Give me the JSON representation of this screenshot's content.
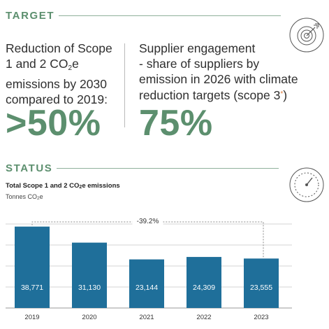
{
  "target": {
    "heading": "TARGET",
    "left_lines": [
      "Reduction of Scope",
      "1 and 2 CO",
      "emissions by 2030",
      "compared to 2019:"
    ],
    "left_sub": "2",
    "left_suffix": "e",
    "left_value": ">50%",
    "right_lines": [
      "Supplier engagement",
      "- share of suppliers by",
      "emission in 2026 with climate",
      "reduction targets (scope 3"
    ],
    "right_star": "*",
    "right_close": ")",
    "right_value": "75%",
    "icon": "target-icon"
  },
  "status": {
    "heading": "STATUS",
    "icon": "speedometer-icon"
  },
  "chart_data": {
    "type": "bar",
    "title": "Total Scope 1 and 2 CO2e emissions",
    "title_parts": [
      "Total Scope 1 and 2 CO",
      "2",
      "e emissions"
    ],
    "ylabel": "Tonnes CO2e",
    "ylabel_parts": [
      "Tonnes CO",
      "2",
      "e"
    ],
    "categories": [
      "2019",
      "2020",
      "2021",
      "2022",
      "2023"
    ],
    "values": [
      38771,
      31130,
      23144,
      24309,
      23555
    ],
    "value_labels": [
      "38,771",
      "31,130",
      "23,144",
      "24,309",
      "23,555"
    ],
    "ylim": [
      0,
      40000
    ],
    "grid": true,
    "annotation": "-39.2%",
    "bar_color": "#1f6f9a",
    "accent_color": "#5c8f6e"
  }
}
